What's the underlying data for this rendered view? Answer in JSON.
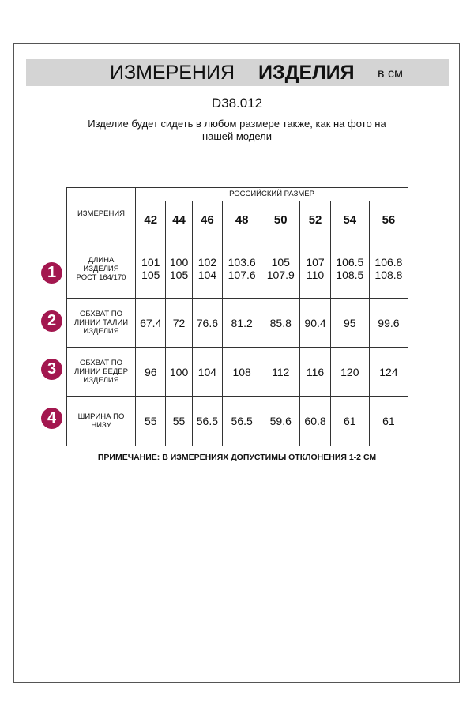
{
  "header": {
    "title_regular": "ИЗМЕРЕНИЯ",
    "title_bold": "ИЗДЕЛИЯ",
    "unit": "в см"
  },
  "code": "D38.012",
  "description": "Изделие будет сидеть в любом размере также, как на фото на нашей модели",
  "table": {
    "size_group_label": "РОССИЙСКИЙ РАЗМЕР",
    "measure_header": "ИЗМЕРЕНИЯ",
    "sizes": [
      "42",
      "44",
      "46",
      "48",
      "50",
      "52",
      "54",
      "56"
    ],
    "rows": [
      {
        "number": "1",
        "label": [
          "ДЛИНА",
          "ИЗДЕЛИЯ",
          "РОСТ 164/170"
        ],
        "values": [
          [
            "101",
            "105"
          ],
          [
            "100",
            "105"
          ],
          [
            "102",
            "104"
          ],
          [
            "103.6",
            "107.6"
          ],
          [
            "105",
            "107.9"
          ],
          [
            "107",
            "110"
          ],
          [
            "106.5",
            "108.5"
          ],
          [
            "106.8",
            "108.8"
          ]
        ]
      },
      {
        "number": "2",
        "label": [
          "ОБХВАТ ПО",
          "ЛИНИИ ТАЛИИ",
          "ИЗДЕЛИЯ"
        ],
        "values": [
          [
            "67.4"
          ],
          [
            "72"
          ],
          [
            "76.6"
          ],
          [
            "81.2"
          ],
          [
            "85.8"
          ],
          [
            "90.4"
          ],
          [
            "95"
          ],
          [
            "99.6"
          ]
        ]
      },
      {
        "number": "3",
        "label": [
          "ОБХВАТ ПО",
          "ЛИНИИ БЕДЕР",
          "ИЗДЕЛИЯ"
        ],
        "values": [
          [
            "96"
          ],
          [
            "100"
          ],
          [
            "104"
          ],
          [
            "108"
          ],
          [
            "112"
          ],
          [
            "116"
          ],
          [
            "120"
          ],
          [
            "124"
          ]
        ]
      },
      {
        "number": "4",
        "label": [
          "ШИРИНА ПО",
          "НИЗУ"
        ],
        "values": [
          [
            "55"
          ],
          [
            "55"
          ],
          [
            "56.5"
          ],
          [
            "56.5"
          ],
          [
            "59.6"
          ],
          [
            "60.8"
          ],
          [
            "61"
          ],
          [
            "61"
          ]
        ]
      }
    ]
  },
  "note": "ПРИМЕЧАНИЕ: В ИЗМЕРЕНИЯХ ДОПУСТИМЫ ОТКЛОНЕНИЯ 1-2 СМ",
  "colors": {
    "badge": "#a3174f",
    "band": "#d4d4d4"
  }
}
